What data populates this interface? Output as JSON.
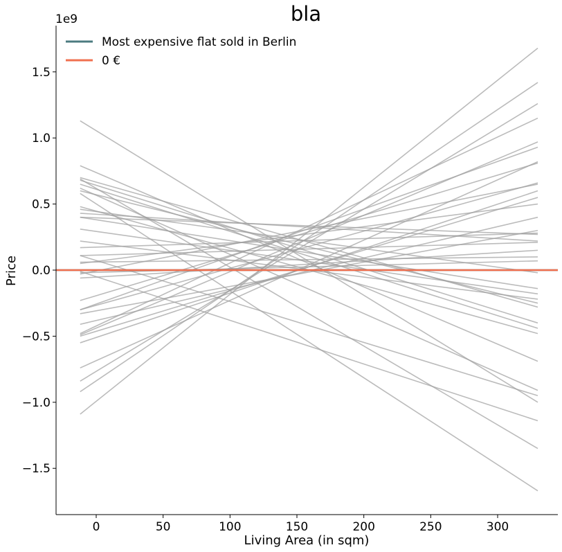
{
  "chart_data": {
    "type": "line",
    "title": "bla",
    "xlabel": "Living Area (in sqm)",
    "ylabel": "Price",
    "y_offset_label": "1e9",
    "xlim": [
      -30,
      345
    ],
    "ylim": [
      -1.85,
      1.85
    ],
    "x_ticks": [
      0,
      50,
      100,
      150,
      200,
      250,
      300
    ],
    "x_tick_labels": [
      "0",
      "50",
      "100",
      "150",
      "200",
      "250",
      "300"
    ],
    "y_ticks": [
      -1.5,
      -1.0,
      -0.5,
      0.0,
      0.5,
      1.0,
      1.5
    ],
    "y_tick_labels": [
      "−1.5",
      "−1.0",
      "−0.5",
      "0.0",
      "0.5",
      "1.0",
      "1.5"
    ],
    "grid": false,
    "legend_position": "top-left",
    "reference_lines": [
      {
        "name": "Most expensive flat sold in Berlin",
        "y": 0.0,
        "color": "#4c7b80"
      },
      {
        "name": "0 €",
        "y": 0.0,
        "color": "#f07050"
      }
    ],
    "sample_line_color": "#9e9e9e",
    "sample_lines": {
      "x": [
        -12,
        330
      ],
      "y_pairs": [
        [
          -1.09,
          1.68
        ],
        [
          -0.92,
          1.42
        ],
        [
          -0.84,
          1.26
        ],
        [
          -0.48,
          1.15
        ],
        [
          -0.49,
          0.97
        ],
        [
          -0.3,
          0.93
        ],
        [
          -0.74,
          0.82
        ],
        [
          -0.23,
          0.81
        ],
        [
          -0.3,
          0.66
        ],
        [
          -0.03,
          0.65
        ],
        [
          -0.55,
          0.6
        ],
        [
          -0.5,
          0.55
        ],
        [
          0.05,
          0.5
        ],
        [
          -0.41,
          0.4
        ],
        [
          -0.33,
          0.3
        ],
        [
          0.17,
          0.28
        ],
        [
          0.4,
          0.27
        ],
        [
          0.43,
          0.22
        ],
        [
          0.11,
          0.21
        ],
        [
          -0.06,
          0.15
        ],
        [
          0.06,
          0.1
        ],
        [
          -0.02,
          0.07
        ],
        [
          0.46,
          -0.02
        ],
        [
          0.4,
          -0.14
        ],
        [
          0.31,
          -0.18
        ],
        [
          0.22,
          -0.22
        ],
        [
          0.6,
          -0.25
        ],
        [
          0.7,
          -0.28
        ],
        [
          0.68,
          -0.4
        ],
        [
          0.65,
          -0.44
        ],
        [
          0.48,
          -0.48
        ],
        [
          0.79,
          -0.69
        ],
        [
          0.62,
          -0.91
        ],
        [
          0.11,
          -0.95
        ],
        [
          1.13,
          -1.0
        ],
        [
          -0.01,
          -1.14
        ],
        [
          0.69,
          -1.35
        ],
        [
          0.58,
          -1.67
        ]
      ]
    }
  }
}
